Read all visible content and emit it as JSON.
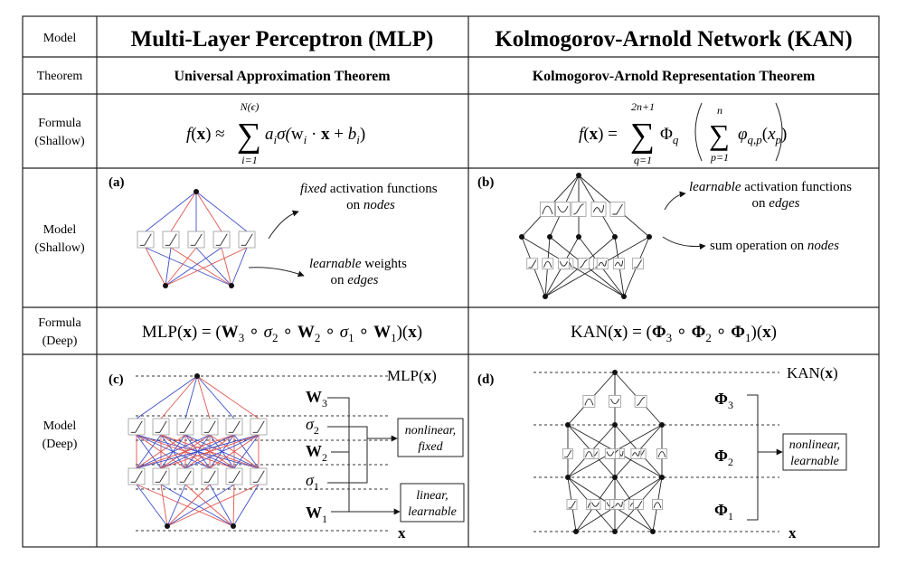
{
  "row_labels": [
    [
      "Model"
    ],
    [
      "Theorem"
    ],
    [
      "Formula",
      "(Shallow)"
    ],
    [
      "Model",
      "(Shallow)"
    ],
    [
      "Formula",
      "(Deep)"
    ],
    [
      "Model",
      "(Deep)"
    ]
  ],
  "mlp": {
    "title": "Multi-Layer Perceptron (MLP)",
    "theorem": "Universal Approximation Theorem",
    "formula_shallow": {
      "lhs": [
        "f",
        "(",
        "x",
        ") ≈"
      ],
      "sum": "∑",
      "sum_top": "N(ϵ)",
      "sum_bottom": "i=1",
      "body": [
        "a",
        "i",
        "σ(",
        "w",
        "i",
        " · ",
        "x",
        " + ",
        "b",
        "i",
        ")"
      ]
    },
    "panel_shallow": {
      "label": "(a)",
      "note_nodes": [
        [
          "fixed",
          " activation functions"
        ],
        [
          "on ",
          "nodes"
        ]
      ],
      "note_edges": [
        [
          "learnable",
          " weights"
        ],
        [
          "on ",
          "edges"
        ]
      ]
    },
    "formula_deep": [
      "MLP(",
      "x",
      ") = (",
      "W",
      "3",
      " ∘ ",
      "σ",
      "2",
      " ∘ ",
      "W",
      "2",
      " ∘ ",
      "σ",
      "1",
      " ∘ ",
      "W",
      "1",
      ")(",
      "x",
      ")"
    ],
    "panel_deep": {
      "label": "(c)",
      "output": [
        "MLP(",
        "x",
        ")"
      ],
      "layers": [
        [
          "W",
          "3"
        ],
        [
          "σ",
          "2"
        ],
        [
          "W",
          "2"
        ],
        [
          "σ",
          "1"
        ],
        [
          "W",
          "1"
        ]
      ],
      "input": "x",
      "box_nonlinear": [
        "nonlinear,",
        "fixed"
      ],
      "box_linear": [
        "linear,",
        "learnable"
      ]
    }
  },
  "kan": {
    "title": "Kolmogorov-Arnold Network (KAN)",
    "theorem": "Kolmogorov-Arnold Representation Theorem",
    "formula_shallow": {
      "lhs": [
        "f",
        "(",
        "x",
        ") ="
      ],
      "sum": "∑",
      "sum_top": "2n+1",
      "sum_bottom": "q=1",
      "outer": [
        "Φ",
        "q"
      ],
      "inner_sum": "∑",
      "inner_top": "n",
      "inner_bottom": "p=1",
      "body": [
        "φ",
        "q,p",
        "(",
        "x",
        "p",
        ")"
      ]
    },
    "panel_shallow": {
      "label": "(b)",
      "note_edges": [
        [
          "learnable",
          " activation functions"
        ],
        [
          "on ",
          "edges"
        ]
      ],
      "note_nodes": [
        [
          "sum operation on ",
          "nodes"
        ]
      ]
    },
    "formula_deep": [
      "KAN(",
      "x",
      ") = (",
      "Φ",
      "3",
      " ∘ ",
      "Φ",
      "2",
      " ∘ ",
      "Φ",
      "1",
      ")(",
      "x",
      ")"
    ],
    "panel_deep": {
      "label": "(d)",
      "output": [
        "KAN(",
        "x",
        ")"
      ],
      "layers": [
        [
          "Φ",
          "3"
        ],
        [
          "Φ",
          "2"
        ],
        [
          "Φ",
          "1"
        ]
      ],
      "input": "x",
      "box_nonlinear": [
        "nonlinear,",
        "learnable"
      ]
    }
  }
}
